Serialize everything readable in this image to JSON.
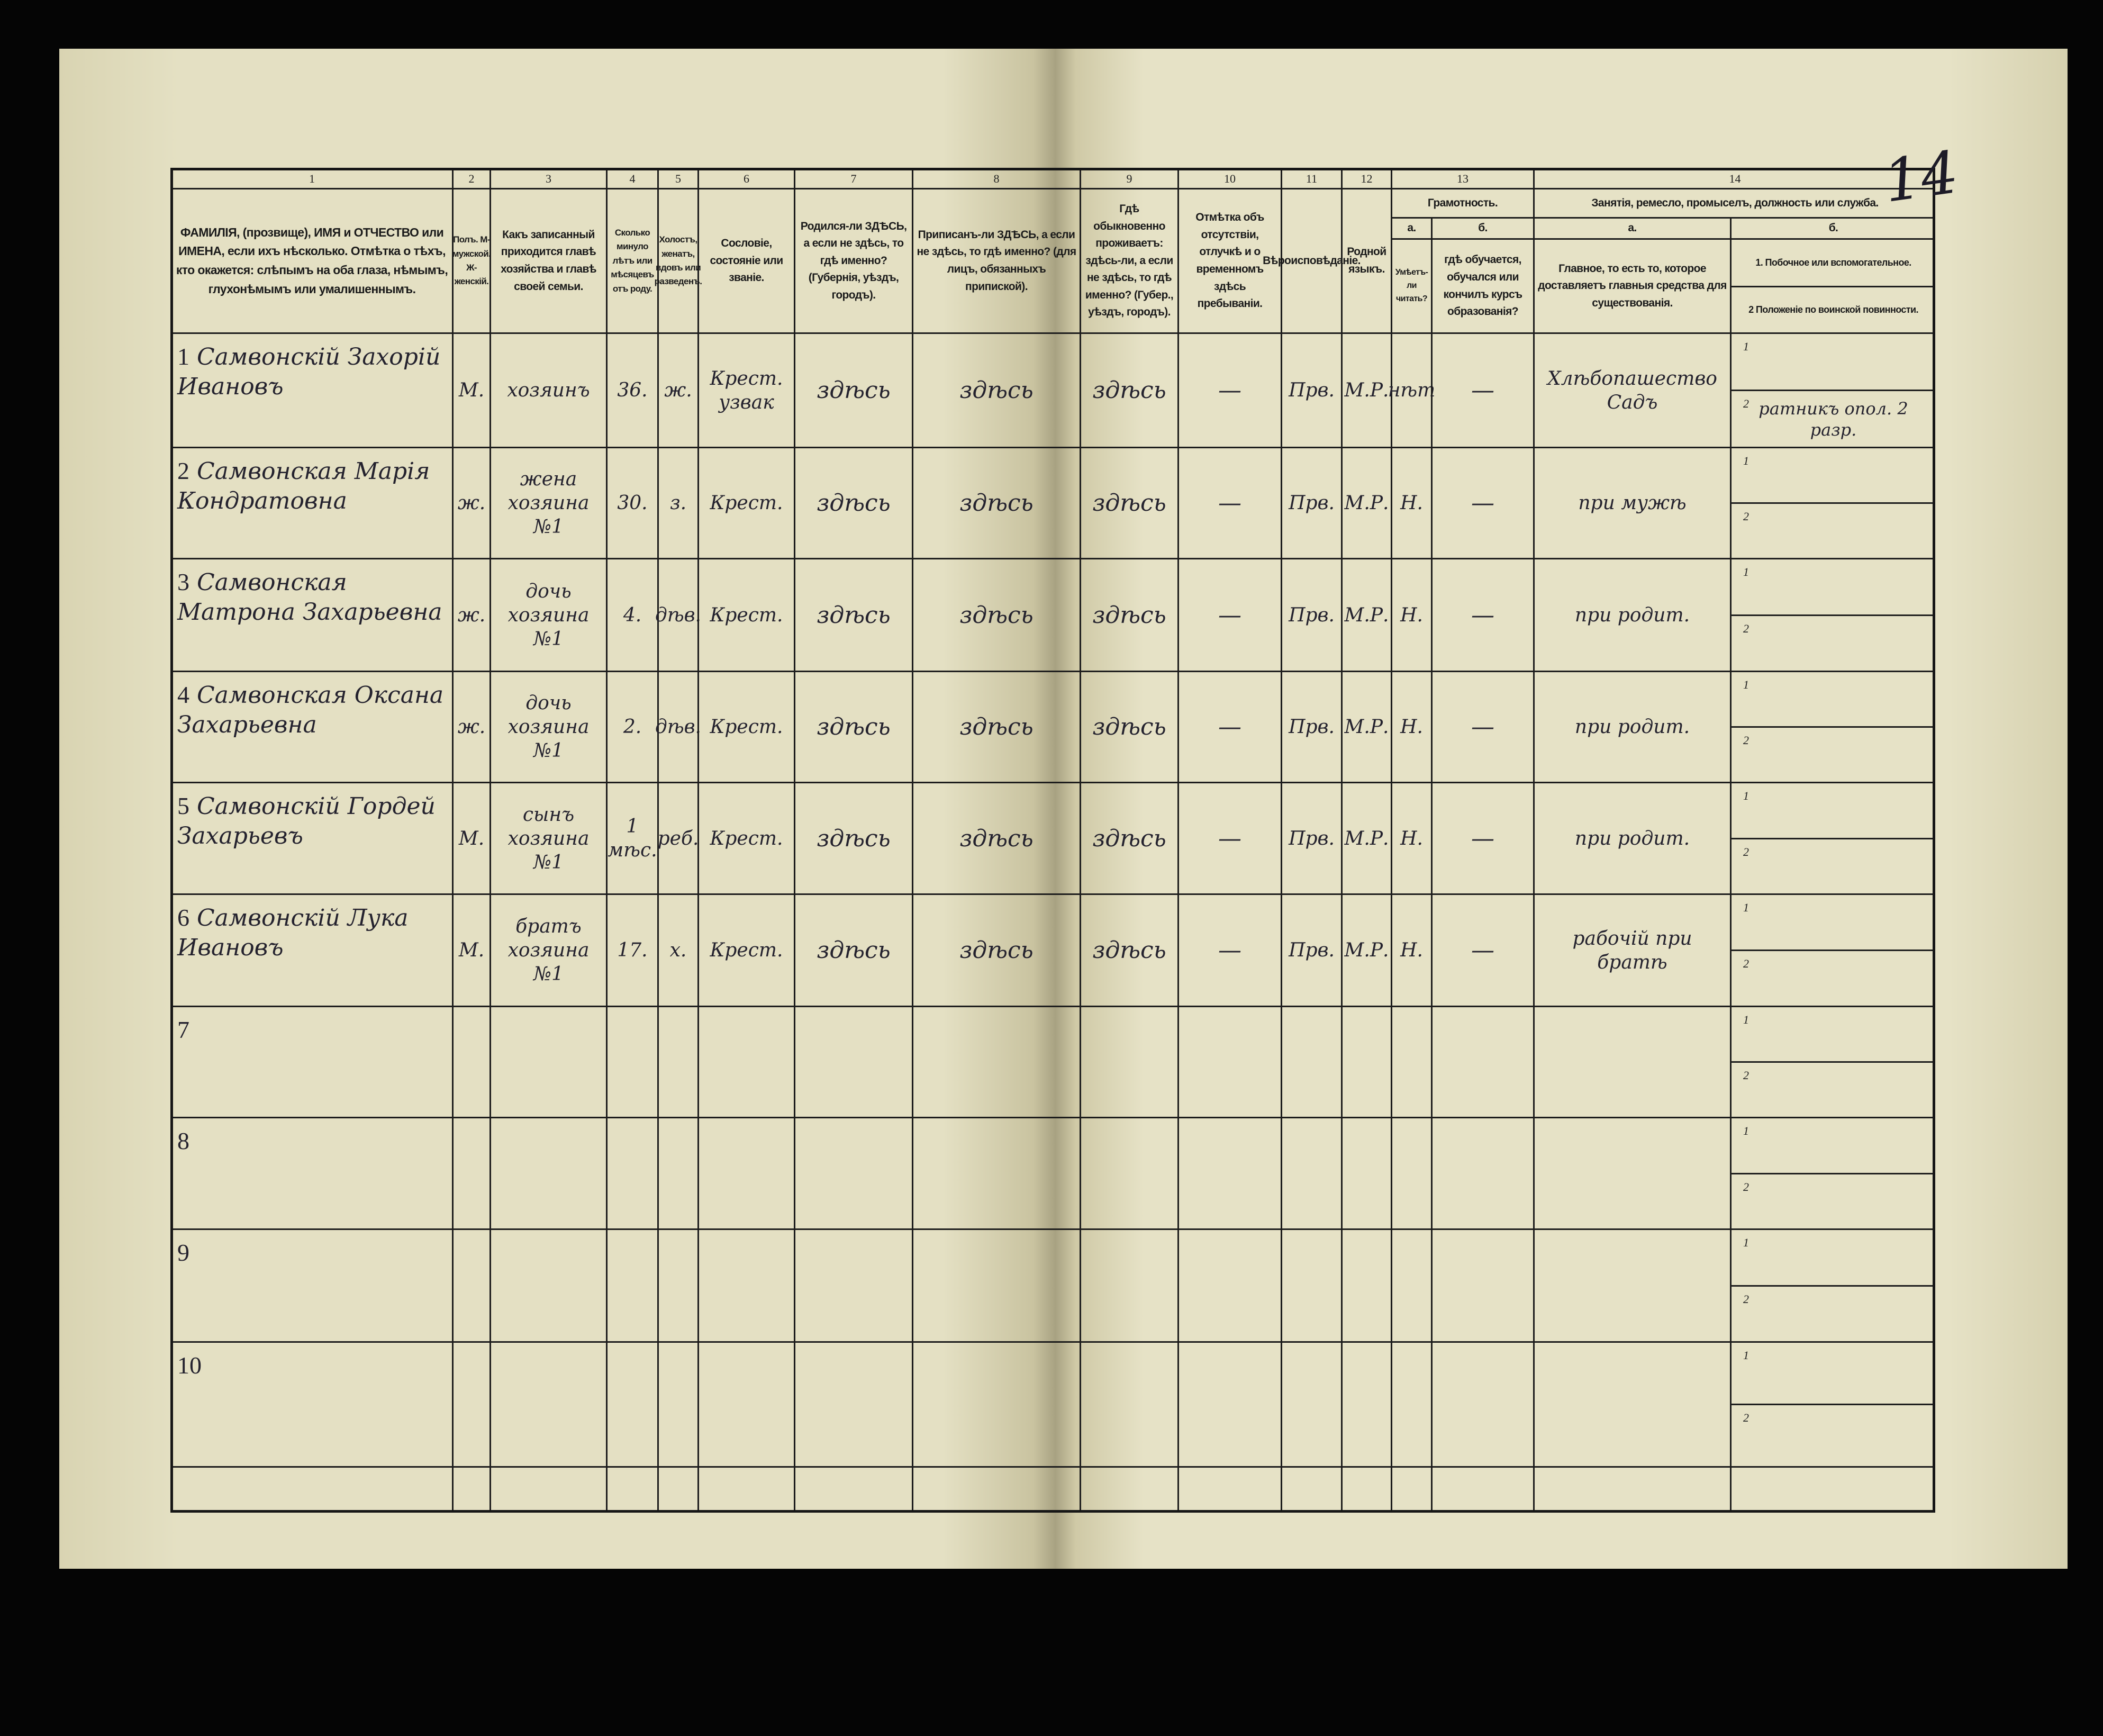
{
  "page_mark": "14",
  "header": {
    "column_numbers": [
      "1",
      "2",
      "3",
      "4",
      "5",
      "6",
      "7",
      "8",
      "9",
      "10",
      "11",
      "12",
      "13",
      "14"
    ],
    "columns": [
      "ФАМИЛІЯ, (прозвище), ИМЯ и ОТЧЕСТВО или ИМЕНА, если ихъ нѣсколько. Отмѣтка о тѣхъ, кто окажется: слѣпымъ на оба глаза, нѣмымъ, глухонѣмымъ или умалишеннымъ.",
      "Полъ. М-мужской. Ж-женскій.",
      "Какъ записанный приходится главѣ хозяйства и главѣ своей семьи.",
      "Сколько минуло лѣтъ или мѣсяцевъ отъ роду.",
      "Холостъ, женатъ, вдовъ или разведенъ.",
      "Сословіе, состояніе или званіе.",
      "Родился-ли ЗДѢСЬ, а если не здѣсь, то гдѣ именно? (Губернія, уѣздъ, городъ).",
      "Приписанъ-ли ЗДѢСЬ, а если не здѣсь, то гдѣ именно? (для лицъ, обязанныхъ припиской).",
      "Гдѣ обыкновенно проживаетъ: здѣсь-ли, а если не здѣсь, то гдѣ именно? (Губер., уѣздъ, городъ).",
      "Отмѣтка объ отсутствіи, отлучкѣ и о временномъ здѣсь пребываніи.",
      "Вѣроисповѣданіе.",
      "Родной языкъ."
    ],
    "literacy": {
      "title": "Грамотность.",
      "a_label": "а.",
      "b_label": "б.",
      "a_text": "Умѣетъ-ли читать?",
      "b_text": "гдѣ обучается, обучался или кончилъ курсъ образованія?"
    },
    "occupation": {
      "title": "Занятія, ремесло, промыселъ, должность или служба.",
      "a_label": "а.",
      "b_label": "б.",
      "a_text": "Главное, то есть то, которое доставляетъ главныя средства для существованія.",
      "b1_text": "1. Побочное или вспомогательное.",
      "b2_text": "2 Положеніе по воинской повинности."
    }
  },
  "sub_row_labels": [
    "1",
    "2"
  ],
  "rows": [
    {
      "n": "1",
      "name": "Самвонскій Захорій Ивановъ",
      "sex": "М.",
      "relation": "хозяинъ",
      "age": "36.",
      "marital": "ж.",
      "estate": "Крест. узвак",
      "born": "здѣсь",
      "registered": "здѣсь",
      "resides": "здѣсь",
      "absence": "—",
      "religion": "Прв.",
      "language": "М.Р.",
      "reads": "нѣт",
      "education": "—",
      "occupation": "Хлѣбопашество Садъ",
      "occ_b1": "",
      "occ_b2": "ратникъ опол. 2 разр."
    },
    {
      "n": "2",
      "name": "Самвонская Марія Кондратовна",
      "sex": "ж.",
      "relation": "жена хозяина №1",
      "age": "30.",
      "marital": "з.",
      "estate": "Крест.",
      "born": "здѣсь",
      "registered": "здѣсь",
      "resides": "здѣсь",
      "absence": "—",
      "religion": "Прв.",
      "language": "М.Р.",
      "reads": "Н.",
      "education": "—",
      "occupation": "при мужѣ",
      "occ_b1": "",
      "occ_b2": ""
    },
    {
      "n": "3",
      "name": "Самвонская Матрона Захарьевна",
      "sex": "ж.",
      "relation": "дочь хозяина №1",
      "age": "4.",
      "marital": "дѣв.",
      "estate": "Крест.",
      "born": "здѣсь",
      "registered": "здѣсь",
      "resides": "здѣсь",
      "absence": "—",
      "religion": "Прв.",
      "language": "М.Р.",
      "reads": "Н.",
      "education": "—",
      "occupation": "при родит.",
      "occ_b1": "",
      "occ_b2": ""
    },
    {
      "n": "4",
      "name": "Самвонская Оксана Захарьевна",
      "sex": "ж.",
      "relation": "дочь хозяина №1",
      "age": "2.",
      "marital": "дѣв.",
      "estate": "Крест.",
      "born": "здѣсь",
      "registered": "здѣсь",
      "resides": "здѣсь",
      "absence": "—",
      "religion": "Прв.",
      "language": "М.Р.",
      "reads": "Н.",
      "education": "—",
      "occupation": "при родит.",
      "occ_b1": "",
      "occ_b2": ""
    },
    {
      "n": "5",
      "name": "Самвонскій Гордей Захарьевъ",
      "sex": "М.",
      "relation": "сынъ хозяина №1",
      "age": "1 мѣс.",
      "marital": "реб.",
      "estate": "Крест.",
      "born": "здѣсь",
      "registered": "здѣсь",
      "resides": "здѣсь",
      "absence": "—",
      "religion": "Прв.",
      "language": "М.Р.",
      "reads": "Н.",
      "education": "—",
      "occupation": "при родит.",
      "occ_b1": "",
      "occ_b2": ""
    },
    {
      "n": "6",
      "name": "Самвонскій Лука Ивановъ",
      "sex": "М.",
      "relation": "братъ хозяина №1",
      "age": "17.",
      "marital": "х.",
      "estate": "Крест.",
      "born": "здѣсь",
      "registered": "здѣсь",
      "resides": "здѣсь",
      "absence": "—",
      "religion": "Прв.",
      "language": "М.Р.",
      "reads": "Н.",
      "education": "—",
      "occupation": "рабочій при братѣ",
      "occ_b1": "",
      "occ_b2": ""
    },
    {
      "n": "7"
    },
    {
      "n": "8"
    },
    {
      "n": "9"
    },
    {
      "n": "10"
    }
  ],
  "colors": {
    "paper": "#e2dec0",
    "ink": "#24222e",
    "rules": "#1c1c1c",
    "background": "#050505"
  }
}
